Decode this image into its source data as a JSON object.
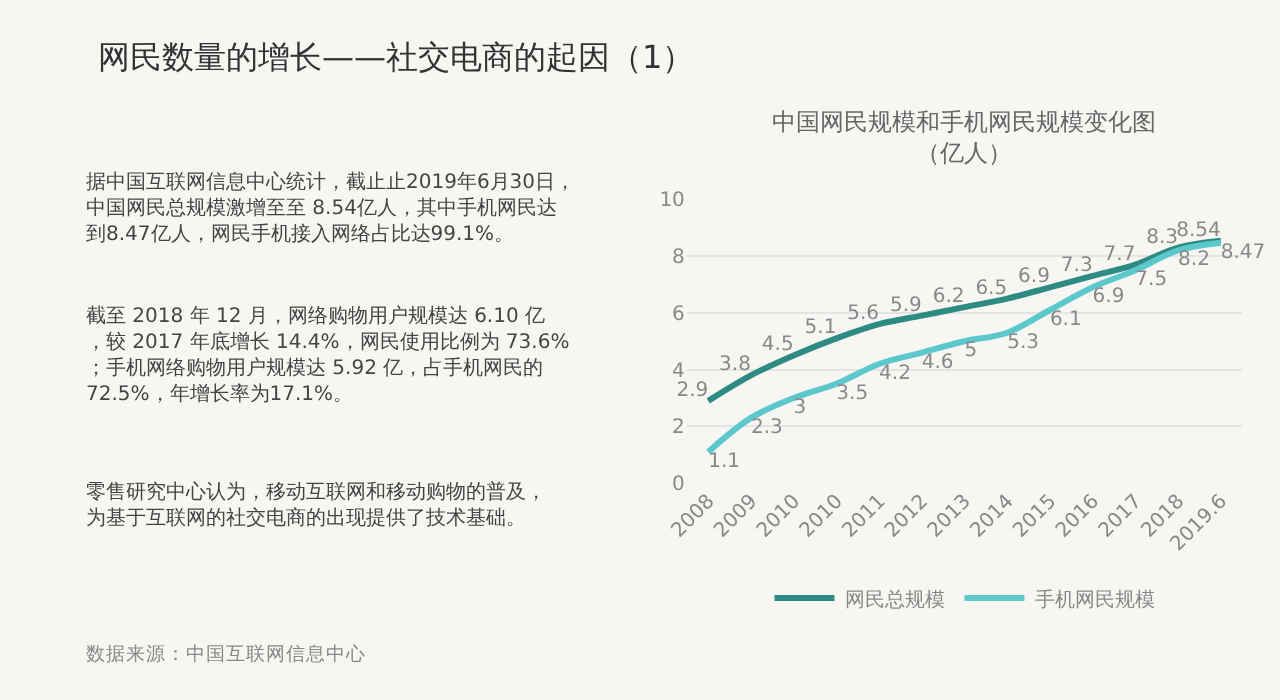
{
  "chart_data": {
    "type": "line",
    "title": "中国网民规模和手机网民规模变化图（亿人）",
    "categories": [
      "2008",
      "2009",
      "2010",
      "2010",
      "2011",
      "2012",
      "2013",
      "2014",
      "2015",
      "2016",
      "2017",
      "2018",
      "2019.6"
    ],
    "series": [
      {
        "name": "网民总规模",
        "color": "#2e8b84",
        "values": [
          2.9,
          3.8,
          4.5,
          5.1,
          5.6,
          5.9,
          6.2,
          6.5,
          6.9,
          7.3,
          7.7,
          8.3,
          8.54
        ]
      },
      {
        "name": "手机网民规模",
        "color": "#5cc8cc",
        "values": [
          1.1,
          2.3,
          3,
          3.5,
          4.2,
          4.6,
          5,
          5.3,
          6.1,
          6.9,
          7.5,
          8.2,
          8.47
        ]
      }
    ],
    "ylim": [
      0,
      10
    ],
    "yticks": [
      0,
      2,
      4,
      6,
      8,
      10
    ],
    "grid": "y",
    "legend": "bottom",
    "data_labels": true,
    "marker": "none",
    "line_style": "solid",
    "annotations": [
      "网民数量的增长——社交电商的起因（1）",
      "据中国互联网信息中心统计，截止止2019年6月30日，中国网民总规模激增至至 8.54亿人，其中手机网民达到8.47亿人，网民手机接入网络占比达99.1%。",
      "截至 2018 年 12 月，网络购物用户规模达 6.10 亿，较 2017 年底增长 14.4%，网民使用比例为 73.6%；手机网络购物用户规模达 5.92 亿，占手机网民的 72.5%，年增长率为17.1%。",
      "零售研究中心认为，移动互联网和移动购物的普及，为基于互联网的社交电商的出现提供了技术基础。",
      "数据来源：中国互联网信息中心"
    ]
  }
}
